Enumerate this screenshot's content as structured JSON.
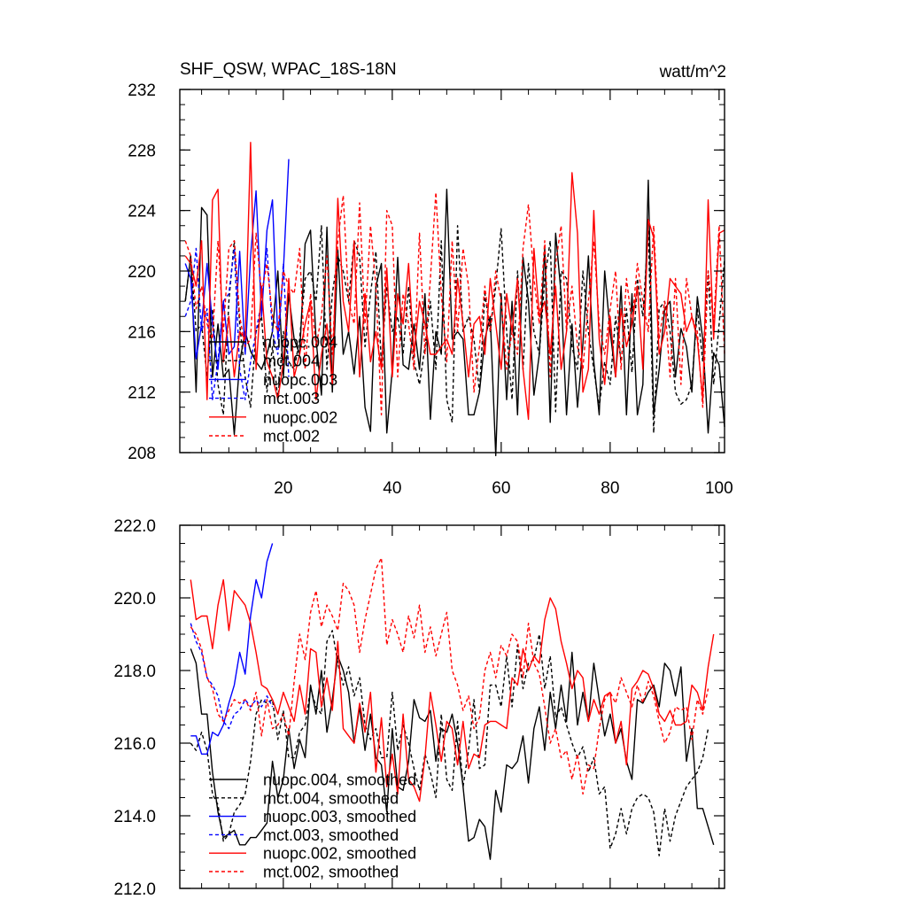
{
  "chart_data": [
    {
      "type": "line",
      "title": "SHF_QSW, WPAC_18S-18N",
      "units": "watt/m^2",
      "xlim": [
        1,
        101
      ],
      "ylim": [
        208,
        232
      ],
      "xticks": [
        20,
        40,
        60,
        80,
        100
      ],
      "yticks": [
        208,
        212,
        216,
        220,
        224,
        228,
        232
      ],
      "ytick_labels": [
        "208",
        "212",
        "216",
        "220",
        "224",
        "228",
        "232"
      ],
      "legend": {
        "position": "lower-left"
      },
      "series": [
        {
          "name": "nuopc.004",
          "color": "#000000",
          "dash": "solid",
          "x_start": 2,
          "values": [
            218,
            221,
            212,
            224.2,
            223.7,
            213,
            216.5,
            213,
            213.5,
            209.2,
            214,
            216,
            214.7,
            214,
            213.5,
            214.5,
            216,
            220,
            213,
            218.5,
            215.5,
            214.5,
            221.8,
            222.7,
            215.5,
            211.8,
            222.9,
            212,
            221.4,
            214.5,
            216,
            213.2,
            217,
            211,
            209.4,
            219,
            220.5,
            209.3,
            213.5,
            220.9,
            213.8,
            213.5,
            216.5,
            213.5,
            218.5,
            210.2,
            216,
            214.5,
            225.4,
            215.5,
            216,
            215.5,
            210.5,
            210.5,
            212,
            215.5,
            217,
            207.8,
            218.5,
            211.5,
            218,
            210.5,
            220.9,
            218,
            211.8,
            214.5,
            221.5,
            210,
            222.5,
            218.5,
            210.5,
            216.5,
            211,
            215.2,
            221,
            214,
            210.5,
            220,
            216,
            213,
            219,
            210.5,
            218.5,
            210.5,
            212.5,
            226,
            210.5,
            213.5,
            217.5,
            218,
            213,
            216.2,
            215,
            212,
            218.3,
            215.5,
            209.3,
            214.6,
            213.8,
            209.7
          ]
        },
        {
          "name": "mct.004",
          "color": "#000000",
          "dash": "dash",
          "x_start": 2,
          "values": [
            218,
            221,
            216,
            216.5,
            213,
            217.5,
            212.5,
            210.5,
            218,
            222,
            216.5,
            213,
            211,
            216,
            217,
            212,
            215,
            211.5,
            216,
            214,
            213.5,
            215.5,
            219.5,
            220,
            218,
            223,
            213.5,
            218.5,
            221,
            220,
            218,
            222,
            221,
            215,
            218.5,
            221.3,
            213.8,
            219,
            216,
            217,
            214.5,
            219,
            214,
            212.5,
            215,
            218,
            213.5,
            222,
            211.5,
            210,
            223,
            216,
            217,
            215.5,
            212,
            218.5,
            216,
            219,
            222.8,
            216,
            211.5,
            220,
            213.5,
            220.5,
            216,
            214.5,
            219.5,
            222,
            210.7,
            220,
            219.5,
            215,
            213.5,
            220,
            216,
            213.5,
            211,
            214,
            212.5,
            217,
            214,
            217.5,
            213.3,
            219.5,
            217,
            222.7,
            209.3,
            217.5,
            218,
            216,
            212,
            211.2,
            211.5,
            212.5,
            217.5,
            214,
            220,
            212.5,
            216.5,
            220.8
          ]
        },
        {
          "name": "nuopc.003",
          "color": "#0000ff",
          "dash": "solid",
          "x_start": 2,
          "values": [
            220.5,
            219.5,
            214.2,
            216.5,
            220.5,
            216.5,
            213.5,
            218,
            214.5,
            215,
            221.3,
            214.5,
            221,
            225.3,
            217,
            222.7,
            224.7,
            215.5,
            220,
            227.4
          ]
        },
        {
          "name": "mct.003",
          "color": "#0000ff",
          "dash": "dash",
          "x_start": 2,
          "values": [
            217,
            218,
            221.5,
            216,
            217.5,
            211.5,
            214,
            218,
            218.5,
            221.5,
            213.5,
            211.5,
            214,
            216,
            218,
            221.5,
            216,
            214.5,
            220.5,
            213
          ]
        },
        {
          "name": "nuopc.002",
          "color": "#ff0000",
          "dash": "solid",
          "x_start": 2,
          "values": [
            221,
            220.5,
            219,
            222,
            211.5,
            224.7,
            225.4,
            214,
            217,
            213,
            216,
            215.5,
            228.5,
            213.5,
            219,
            214,
            213,
            211.5,
            214,
            219.5,
            213,
            214.5,
            216.5,
            218,
            211.5,
            214.5,
            216.5,
            212.5,
            224.8,
            218,
            216,
            222,
            213,
            218.5,
            214,
            216,
            213.5,
            220.2,
            213,
            218.5,
            216.5,
            220.5,
            214.5,
            218,
            216.5,
            214.5,
            214.5,
            215,
            215.5,
            214.5,
            219.5,
            216.5,
            213,
            216.5,
            217,
            214.5,
            219.5,
            216.5,
            213.5,
            218.5,
            216,
            219.5,
            213.5,
            210.2,
            221.5,
            217,
            218,
            214.5,
            219,
            213.5,
            216,
            226.5,
            222.5,
            212,
            213.5,
            224,
            215.5,
            212.5,
            217,
            213,
            217.5,
            215,
            216.5,
            219,
            213.5,
            223.4,
            222.2,
            214.5,
            216,
            219.5,
            219,
            218.5,
            216,
            217,
            215.5,
            211.5,
            224.7,
            215.5,
            222.5,
            222.7
          ]
        },
        {
          "name": "mct.002",
          "color": "#ff0000",
          "dash": "dash",
          "x_start": 2,
          "values": [
            222,
            221,
            217.5,
            219,
            216.5,
            215.5,
            222,
            216,
            221.5,
            222,
            217,
            215,
            215.5,
            222.5,
            218.5,
            220.5,
            217,
            216,
            220,
            219,
            218.5,
            221.5,
            213.5,
            218.5,
            215,
            217,
            221,
            214.5,
            222,
            225,
            218,
            216.5,
            224.5,
            216.5,
            223,
            219,
            210.5,
            224,
            223,
            213,
            218.5,
            216.5,
            213.5,
            222.5,
            214.5,
            219.5,
            225.2,
            218.5,
            214,
            222,
            216,
            221.5,
            219,
            212,
            215,
            219,
            216,
            220,
            218,
            213.5,
            216,
            214.5,
            221.5,
            224.4,
            219.5,
            216.5,
            222,
            213,
            220.5,
            223,
            216,
            219,
            215,
            213.5,
            218,
            222,
            216.5,
            214.5,
            217.5,
            220,
            213.5,
            219.5,
            216.5,
            220.5,
            218,
            216,
            223,
            215.5,
            218,
            213,
            219.5,
            212.5,
            219.5,
            217,
            216,
            211,
            220,
            216.5,
            223,
            214.5
          ]
        }
      ]
    },
    {
      "type": "line",
      "xlim": [
        1,
        101
      ],
      "ylim": [
        212.0,
        222.0
      ],
      "xticks": [
        20,
        40,
        60,
        80,
        100
      ],
      "yticks": [
        212.0,
        214.0,
        216.0,
        218.0,
        220.0,
        222.0
      ],
      "ytick_labels": [
        "212.0",
        "214.0",
        "216.0",
        "218.0",
        "220.0",
        "222.0"
      ],
      "legend": {
        "position": "lower-left"
      },
      "series": [
        {
          "name": "nuopc.004, smoothed",
          "color": "#000000",
          "dash": "solid",
          "x_start": 3,
          "values": [
            218.6,
            218.2,
            216.8,
            216.8,
            215.2,
            214.1,
            213.4,
            213.5,
            213.6,
            213.2,
            213.2,
            213.4,
            213.4,
            213.6,
            213.8,
            215.5,
            214.5,
            215.0,
            216.4,
            215.3,
            216.1,
            215.6,
            217.6,
            216.8,
            218.0,
            216.3,
            217.2,
            218.4,
            218.0,
            217.4,
            216.0,
            217.0,
            215.8,
            216.8,
            215.6,
            215.4,
            214.1,
            216.4,
            214.8,
            214.7,
            215.5,
            217.2,
            216.7,
            216.6,
            216.9,
            215.5,
            216.4,
            216.3,
            216.8,
            216.0,
            214.8,
            213.3,
            213.4,
            213.9,
            213.7,
            212.8,
            214.7,
            214.1,
            215.4,
            215.3,
            215.5,
            216.2,
            214.9,
            216.4,
            217.0,
            215.8,
            217.4,
            216.4,
            217.6,
            216.6,
            218.5,
            216.5,
            217.4,
            216.6,
            218.2,
            217.2,
            216.2,
            216.8,
            216.0,
            216.4,
            215.5,
            215.0,
            217.2,
            217.1,
            217.4,
            217.6,
            217.0,
            218.2,
            218.0,
            217.3,
            218.1,
            215.5,
            216.4,
            214.2,
            214.2,
            213.7,
            213.2
          ]
        },
        {
          "name": "mct.004, smoothed",
          "color": "#000000",
          "dash": "dash",
          "x_start": 3,
          "values": [
            216.0,
            215.8,
            216.3,
            215.8,
            214.6,
            214.3,
            213.3,
            213.5,
            214.1,
            214.3,
            214.6,
            215.5,
            216.8,
            217.2,
            217.1,
            217.2,
            216.1,
            216.9,
            215.6,
            215.6,
            216.3,
            216.5,
            217.5,
            217.0,
            216.8,
            218.8,
            219.1,
            218.2,
            217.6,
            218.1,
            217.3,
            217.8,
            216.5,
            216.1,
            216.4,
            215.6,
            215.6,
            217.4,
            215.8,
            216.5,
            216.0,
            215.3,
            214.7,
            215.7,
            215.2,
            214.5,
            216.8,
            215.0,
            214.7,
            216.6,
            214.8,
            215.8,
            217.2,
            215.3,
            215.4,
            217.6,
            217.6,
            217.0,
            218.4,
            217.0,
            218.7,
            217.5,
            218.2,
            218.3,
            219.0,
            217.5,
            218.4,
            216.7,
            217.0,
            216.5,
            216.0,
            215.6,
            215.9,
            215.2,
            215.6,
            214.6,
            214.8,
            213.1,
            213.5,
            214.2,
            213.5,
            214.2,
            214.5,
            214.6,
            214.5,
            214.1,
            212.9,
            214.2,
            213.3,
            214.0,
            214.4,
            214.8,
            215.0,
            215.2,
            215.6,
            216.4
          ]
        },
        {
          "name": "nuopc.003, smoothed",
          "color": "#0000ff",
          "dash": "solid",
          "x_start": 3,
          "values": [
            216.2,
            216.2,
            215.7,
            215.7,
            216.3,
            216.2,
            216.5,
            217.1,
            217.6,
            218.5,
            217.9,
            219.5,
            220.5,
            220.0,
            221.0,
            221.5
          ]
        },
        {
          "name": "mct.003, smoothed",
          "color": "#0000ff",
          "dash": "dash",
          "x_start": 3,
          "values": [
            219.3,
            218.8,
            218.5,
            217.8,
            217.6,
            217.3,
            216.6,
            216.4,
            216.8,
            216.9,
            217.2,
            217.0,
            217.2,
            217.0,
            217.3,
            217.0
          ]
        },
        {
          "name": "nuopc.002, smoothed",
          "color": "#ff0000",
          "dash": "solid",
          "x_start": 3,
          "values": [
            220.5,
            219.4,
            219.5,
            219.5,
            218.6,
            219.8,
            220.5,
            219.1,
            220.2,
            220.0,
            219.8,
            219.3,
            218.5,
            217.6,
            217.5,
            217.2,
            216.8,
            217.4,
            217.0,
            216.6,
            217.6,
            216.8,
            218.6,
            218.5,
            217.0,
            217.8,
            216.9,
            218.8,
            216.4,
            216.2,
            216.0,
            217.1,
            216.3,
            217.4,
            215.2,
            216.7,
            214.8,
            215.7,
            214.6,
            216.8,
            215.0,
            214.8,
            214.4,
            215.6,
            217.4,
            216.5,
            215.5,
            216.6,
            216.4,
            215.4,
            216.6,
            215.3,
            215.7,
            215.6,
            216.5,
            216.6,
            216.6,
            216.5,
            216.4,
            217.8,
            217.6,
            218.6,
            218.0,
            218.4,
            218.2,
            219.4,
            220.0,
            219.7,
            218.8,
            218.2,
            217.5,
            218.0,
            217.8,
            216.6,
            217.2,
            216.8,
            217.3,
            217.4,
            216.0,
            216.6,
            215.4,
            217.5,
            217.7,
            218.0,
            217.9,
            217.5,
            216.8,
            216.6,
            216.9,
            216.5,
            216.5,
            216.6,
            217.6,
            217.4,
            216.9,
            218.1,
            219.0
          ]
        },
        {
          "name": "mct.002, smoothed",
          "color": "#ff0000",
          "dash": "dash",
          "x_start": 3,
          "values": [
            219.2,
            219.0,
            218.6,
            217.8,
            217.5,
            216.8,
            216.6,
            216.9,
            217.2,
            217.1,
            217.2,
            216.9,
            217.4,
            216.2,
            217.2,
            216.4,
            216.5,
            216.8,
            216.2,
            217.7,
            219.0,
            218.3,
            219.6,
            220.2,
            219.2,
            219.8,
            219.5,
            219.1,
            220.4,
            220.2,
            219.8,
            218.5,
            219.4,
            220.1,
            220.8,
            221.1,
            218.7,
            219.4,
            219.0,
            218.5,
            219.5,
            218.9,
            219.8,
            218.5,
            219.2,
            218.4,
            219.0,
            219.6,
            218.0,
            217.6,
            216.9,
            217.3,
            216.4,
            216.7,
            218.0,
            218.5,
            217.8,
            218.7,
            218.4,
            219.0,
            218.8,
            217.8,
            219.3,
            218.2,
            217.9,
            217.0,
            216.0,
            216.4,
            215.6,
            215.8,
            215.0,
            215.7,
            214.6,
            215.4,
            215.3,
            216.4,
            217.2,
            217.4,
            217.1,
            217.8,
            217.4,
            217.0,
            217.6,
            217.1,
            217.7,
            217.3,
            216.6,
            216.0,
            216.3,
            217.0,
            216.9,
            217.0,
            216.1,
            217.2,
            216.8,
            217.5
          ]
        }
      ]
    }
  ]
}
